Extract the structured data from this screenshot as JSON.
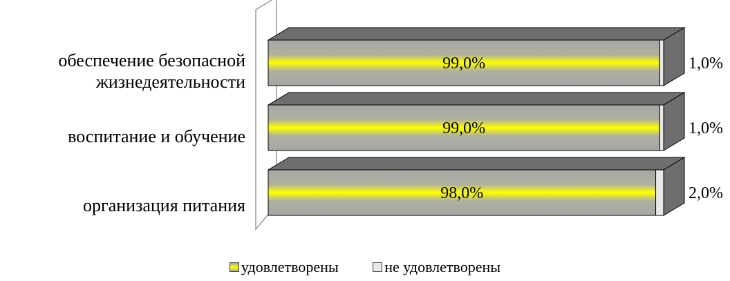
{
  "chart_data": {
    "type": "bar",
    "orientation": "horizontal",
    "stacked": true,
    "percent": true,
    "three_d": true,
    "categories": [
      "обеспечение безопасной жизнедеятельности",
      "воспитание и обучение",
      "организация питания"
    ],
    "series": [
      {
        "name": "удовлетворены",
        "values": [
          99.0,
          99.0,
          98.0
        ],
        "labels": [
          "99,0%",
          "99,0%",
          "98,0%"
        ],
        "color": "#a6a6a6",
        "highlight": "#ffff00"
      },
      {
        "name": "не удовлетворены",
        "values": [
          1.0,
          1.0,
          2.0
        ],
        "labels": [
          "1,0%",
          "1,0%",
          "2,0%"
        ],
        "color": "#e8e8e8"
      }
    ],
    "xlim": [
      0,
      100
    ],
    "grid": false,
    "legend_position": "bottom"
  },
  "category_labels": {
    "line1": [
      "обеспечение безопасной",
      "воспитание и обучение",
      "организация питания"
    ],
    "line2": [
      "жизнедеятельности",
      "",
      ""
    ]
  },
  "legend": {
    "satisfied": "удовлетворены",
    "not_satisfied": "не удовлетворены"
  }
}
